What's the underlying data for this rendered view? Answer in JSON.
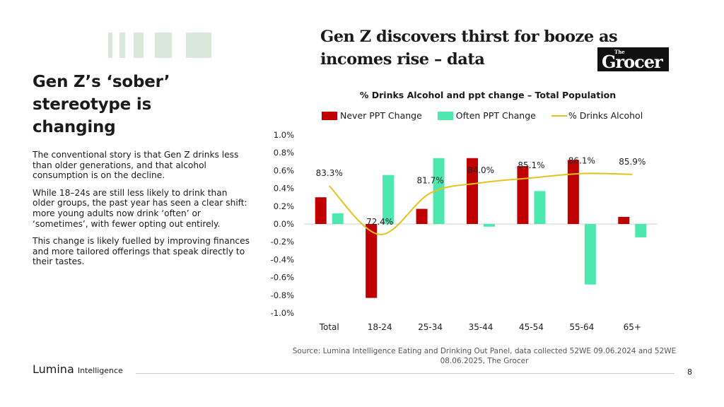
{
  "slide": {
    "heading": "Gen Z’s ‘sober’ stereotype is changing",
    "paragraphs": [
      "The conventional story is that Gen Z drinks less than older generations, and that alcohol consumption is on the decline.",
      "While 18–24s are still less likely to drink than older groups, the past year has seen a clear shift: more young adults now drink ‘often’ or ‘sometimes’, with fewer opting out entirely.",
      "This change is likely fuelled by improving finances and more tailored offerings that speak directly to their tastes."
    ],
    "headline": "Gen Z discovers thirst for booze as incomes rise – data",
    "grocer_the": "The",
    "grocer_name": "Grocer",
    "source": "Source: Lumina Intelligence Eating and Drinking Out Panel, data collected 52WE 09.06.2024 and 52WE 08.06.2025, The Grocer",
    "logo_main": "Lumina",
    "logo_sub": "Intelligence",
    "page_number": "8"
  },
  "colors": {
    "never": "#c00000",
    "often": "#4de8b0",
    "drinks": "#e8c21a",
    "deco": "#d9e7dc"
  },
  "chart_data": {
    "type": "bar",
    "title": "% Drinks Alcohol and ppt change – Total Population",
    "categories": [
      "Total",
      "18-24",
      "25-34",
      "35-44",
      "45-54",
      "55-64",
      "65+"
    ],
    "series": [
      {
        "name": "Never PPT Change",
        "type": "bar",
        "values": [
          0.3,
          -0.83,
          0.17,
          0.74,
          0.65,
          0.72,
          0.08
        ]
      },
      {
        "name": "Often PPT Change",
        "type": "bar",
        "values": [
          0.12,
          0.55,
          0.74,
          -0.03,
          0.37,
          -0.68,
          -0.15
        ]
      },
      {
        "name": "% Drinks Alcohol",
        "type": "line",
        "values": [
          83.3,
          72.4,
          81.7,
          84.0,
          85.1,
          86.1,
          85.9
        ],
        "labels": [
          "83.3%",
          "72.4%",
          "81.7%",
          "84.0%",
          "85.1%",
          "86.1%",
          "85.9%"
        ]
      }
    ],
    "ylim": [
      -1.0,
      1.0
    ],
    "yticks": [
      "-1.0%",
      "-0.8%",
      "-0.6%",
      "-0.4%",
      "-0.2%",
      "0.0%",
      "0.2%",
      "0.4%",
      "0.6%",
      "0.8%",
      "1.0%"
    ],
    "legend": "top",
    "grid": false
  }
}
